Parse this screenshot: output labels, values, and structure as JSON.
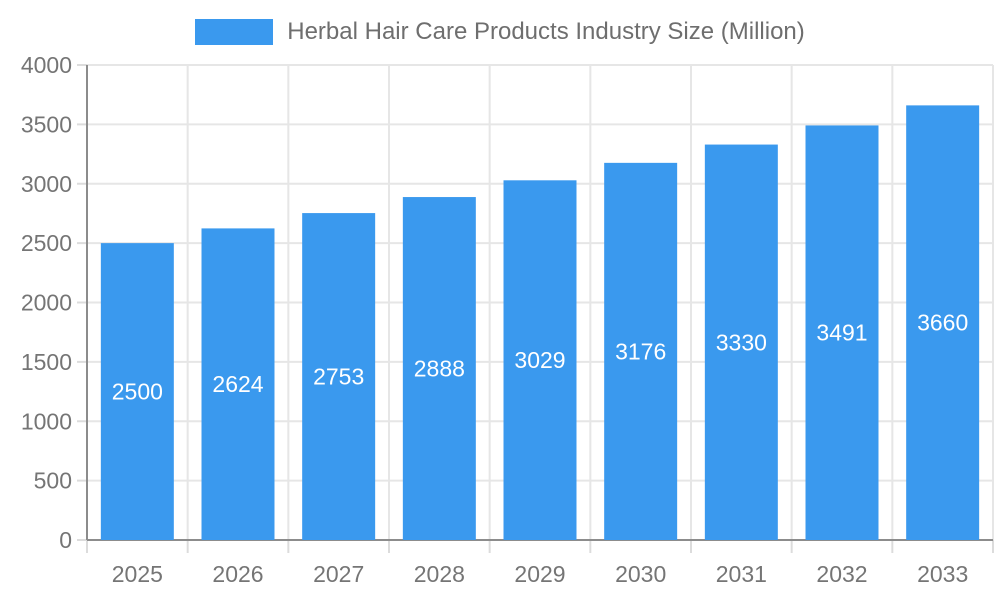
{
  "legend": {
    "label": "Herbal Hair Care Products Industry Size (Million)"
  },
  "chart_data": {
    "type": "bar",
    "title": "Herbal Hair Care Products Industry Size (Million)",
    "categories": [
      "2025",
      "2026",
      "2027",
      "2028",
      "2029",
      "2030",
      "2031",
      "2032",
      "2033"
    ],
    "values": [
      2500,
      2624,
      2753,
      2888,
      3029,
      3176,
      3330,
      3491,
      3660
    ],
    "xlabel": "",
    "ylabel": "",
    "ylim": [
      0,
      4000
    ],
    "ytick_step": 500,
    "yticks": [
      0,
      500,
      1000,
      1500,
      2000,
      2500,
      3000,
      3500,
      4000
    ],
    "grid": true,
    "legend_position": "top",
    "value_labels": "inside-center",
    "colors": {
      "bar": "#3A99EE",
      "grid": "#E6E6E6",
      "tick": "#DCDCDC",
      "axis": "#8C8C8C",
      "tick_text": "#757575",
      "legend_text": "#6E6E6E",
      "bar_label_text": "#FFFFFF",
      "background": "#FFFFFF"
    }
  }
}
